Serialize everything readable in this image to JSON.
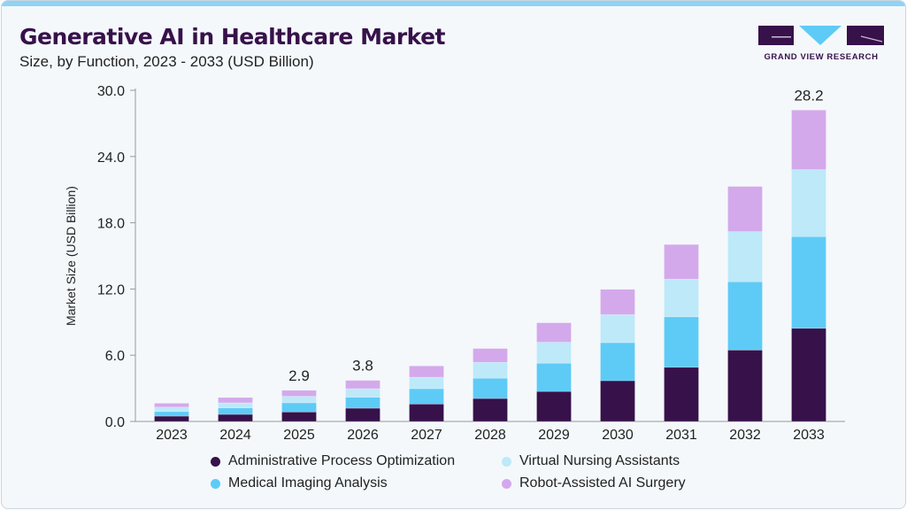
{
  "header": {
    "title": "Generative AI in Healthcare Market",
    "subtitle": "Size, by Function, 2023 - 2033 (USD Billion)",
    "logo_text": "GRAND VIEW RESEARCH"
  },
  "chart_data": {
    "type": "bar",
    "stacked": true,
    "title": "Generative AI in Healthcare Market",
    "subtitle": "Size, by Function, 2023 - 2033 (USD Billion)",
    "xlabel": "",
    "ylabel": "Market Size (USD Billion)",
    "ylim": [
      0,
      30
    ],
    "yticks": [
      "0.0",
      "6.0",
      "12.0",
      "18.0",
      "24.0",
      "30.0"
    ],
    "grid": false,
    "legend_position": "bottom",
    "categories": [
      "2023",
      "2024",
      "2025",
      "2026",
      "2027",
      "2028",
      "2029",
      "2030",
      "2031",
      "2032",
      "2033"
    ],
    "series": [
      {
        "name": "Administrative Process Optimization",
        "color": "#37114a",
        "values": [
          0.48,
          0.64,
          0.86,
          1.2,
          1.58,
          2.08,
          2.72,
          3.69,
          4.91,
          6.47,
          8.44
        ]
      },
      {
        "name": "Medical Imaging Analysis",
        "color": "#5ecbf6",
        "values": [
          0.42,
          0.59,
          0.83,
          0.99,
          1.39,
          1.84,
          2.56,
          3.45,
          4.57,
          6.19,
          8.31
        ]
      },
      {
        "name": "Virtual Nursing Assistants",
        "color": "#bde9f9",
        "values": [
          0.4,
          0.46,
          0.59,
          0.78,
          1.04,
          1.44,
          1.9,
          2.54,
          3.42,
          4.54,
          6.07
        ]
      },
      {
        "name": "Robot-Assisted AI Surgery",
        "color": "#d4a9eb",
        "values": [
          0.35,
          0.48,
          0.54,
          0.75,
          1.02,
          1.25,
          1.76,
          2.29,
          3.13,
          4.09,
          5.39
        ]
      }
    ],
    "data_labels": [
      {
        "category": "2025",
        "text": "2.9"
      },
      {
        "category": "2026",
        "text": "3.8"
      },
      {
        "category": "2033",
        "text": "28.2"
      }
    ]
  }
}
